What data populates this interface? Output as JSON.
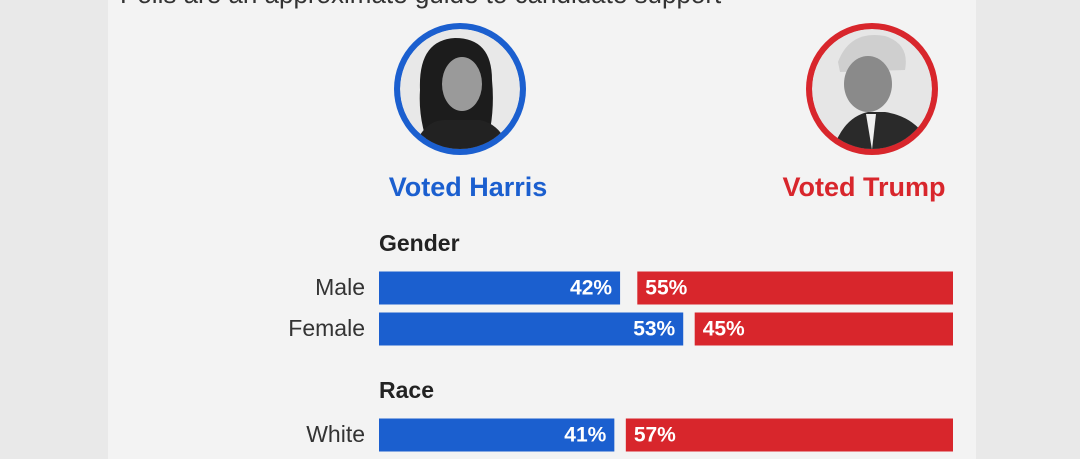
{
  "chart_data": {
    "type": "bar",
    "subtitle": "Polls are an approximate guide to candidate support",
    "groups": [
      {
        "name": "Gender",
        "categories": [
          "Male",
          "Female"
        ]
      },
      {
        "name": "Race",
        "categories": [
          "White"
        ]
      }
    ],
    "series": [
      {
        "name": "Voted Harris",
        "color": "#1b5fcf",
        "values": [
          42,
          53,
          41
        ],
        "value_labels": [
          "42%",
          "53%",
          "41%"
        ],
        "align": "left"
      },
      {
        "name": "Voted Trump",
        "color": "#d8262c",
        "values": [
          55,
          45,
          57
        ],
        "value_labels": [
          "55%",
          "45%",
          "57%"
        ],
        "align": "right"
      }
    ],
    "xlim": [
      0,
      100
    ]
  }
}
